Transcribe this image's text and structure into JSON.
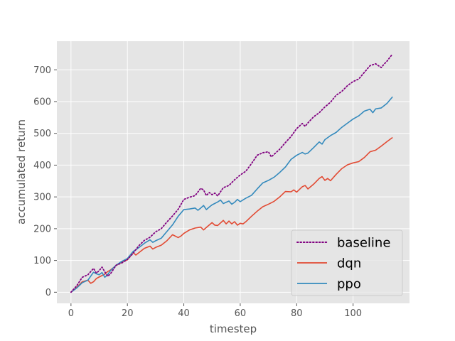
{
  "chart_data": {
    "type": "line",
    "title": "",
    "xlabel": "timestep",
    "ylabel": "accumulated return",
    "xlim": [
      -5,
      120
    ],
    "ylim": [
      -35,
      790
    ],
    "xticks": [
      0,
      20,
      40,
      60,
      80,
      100
    ],
    "yticks": [
      0,
      100,
      200,
      300,
      400,
      500,
      600,
      700
    ],
    "grid": true,
    "legend_position": "bottom-right",
    "series": [
      {
        "name": "baseline",
        "color": "#800080",
        "style": "dotted",
        "x": [
          0,
          2,
          4,
          6,
          8,
          9,
          10,
          11,
          12,
          13,
          14,
          16,
          18,
          20,
          22,
          24,
          26,
          28,
          30,
          32,
          34,
          36,
          38,
          40,
          42,
          44,
          46,
          47,
          48,
          49,
          50,
          51,
          52,
          54,
          56,
          58,
          60,
          62,
          64,
          66,
          68,
          70,
          71,
          72,
          74,
          76,
          78,
          80,
          82,
          83,
          84,
          86,
          88,
          90,
          92,
          94,
          96,
          98,
          100,
          102,
          104,
          106,
          108,
          110,
          111,
          112,
          114
        ],
        "y": [
          0,
          20,
          47,
          55,
          75,
          60,
          68,
          79,
          64,
          50,
          58,
          85,
          92,
          103,
          122,
          146,
          163,
          173,
          190,
          200,
          221,
          240,
          261,
          292,
          299,
          304,
          327,
          322,
          304,
          314,
          307,
          312,
          303,
          329,
          336,
          354,
          369,
          381,
          405,
          431,
          439,
          442,
          426,
          434,
          450,
          471,
          490,
          515,
          531,
          522,
          533,
          552,
          565,
          583,
          598,
          620,
          632,
          650,
          663,
          671,
          692,
          713,
          719,
          707,
          718,
          727,
          750
        ]
      },
      {
        "name": "dqn",
        "color": "#e24a33",
        "style": "solid",
        "x": [
          0,
          2,
          4,
          6,
          7,
          8,
          9,
          10,
          12,
          13,
          14,
          16,
          18,
          20,
          22,
          23,
          24,
          26,
          28,
          29,
          30,
          32,
          34,
          36,
          38,
          39,
          40,
          42,
          44,
          46,
          47,
          48,
          50,
          51,
          52,
          54,
          55,
          56,
          57,
          58,
          59,
          60,
          61,
          62,
          64,
          66,
          68,
          70,
          72,
          74,
          76,
          78,
          79,
          80,
          82,
          83,
          84,
          86,
          88,
          89,
          90,
          91,
          92,
          94,
          96,
          98,
          100,
          102,
          104,
          106,
          108,
          110,
          112,
          114
        ],
        "y": [
          0,
          15,
          33,
          38,
          28,
          33,
          43,
          48,
          57,
          65,
          70,
          84,
          95,
          102,
          125,
          117,
          124,
          138,
          145,
          136,
          141,
          148,
          162,
          181,
          172,
          177,
          185,
          196,
          202,
          205,
          196,
          204,
          219,
          211,
          210,
          226,
          215,
          224,
          215,
          222,
          211,
          217,
          215,
          222,
          239,
          255,
          269,
          277,
          286,
          300,
          317,
          316,
          322,
          315,
          332,
          336,
          325,
          340,
          358,
          364,
          352,
          358,
          351,
          371,
          389,
          401,
          407,
          411,
          424,
          442,
          447,
          460,
          474,
          487
        ]
      },
      {
        "name": "ppo",
        "color": "#348abd",
        "style": "solid",
        "x": [
          0,
          2,
          4,
          6,
          8,
          9,
          10,
          11,
          12,
          13,
          14,
          16,
          18,
          20,
          22,
          24,
          26,
          28,
          29,
          30,
          32,
          34,
          36,
          38,
          40,
          42,
          44,
          45,
          46,
          47,
          48,
          49,
          50,
          52,
          53,
          54,
          55,
          56,
          57,
          58,
          59,
          60,
          62,
          64,
          66,
          68,
          70,
          72,
          74,
          76,
          78,
          80,
          82,
          83,
          84,
          86,
          88,
          89,
          90,
          92,
          94,
          96,
          98,
          100,
          102,
          104,
          106,
          107,
          108,
          110,
          112,
          114
        ],
        "y": [
          0,
          13,
          30,
          38,
          63,
          58,
          55,
          62,
          47,
          55,
          68,
          85,
          97,
          106,
          128,
          140,
          154,
          165,
          157,
          162,
          170,
          191,
          212,
          239,
          260,
          262,
          265,
          258,
          265,
          273,
          260,
          268,
          275,
          284,
          290,
          279,
          283,
          287,
          277,
          283,
          292,
          285,
          296,
          305,
          325,
          344,
          352,
          362,
          377,
          394,
          418,
          431,
          440,
          435,
          438,
          455,
          473,
          466,
          480,
          493,
          503,
          519,
          532,
          545,
          555,
          570,
          576,
          565,
          577,
          580,
          594,
          615
        ]
      }
    ]
  }
}
